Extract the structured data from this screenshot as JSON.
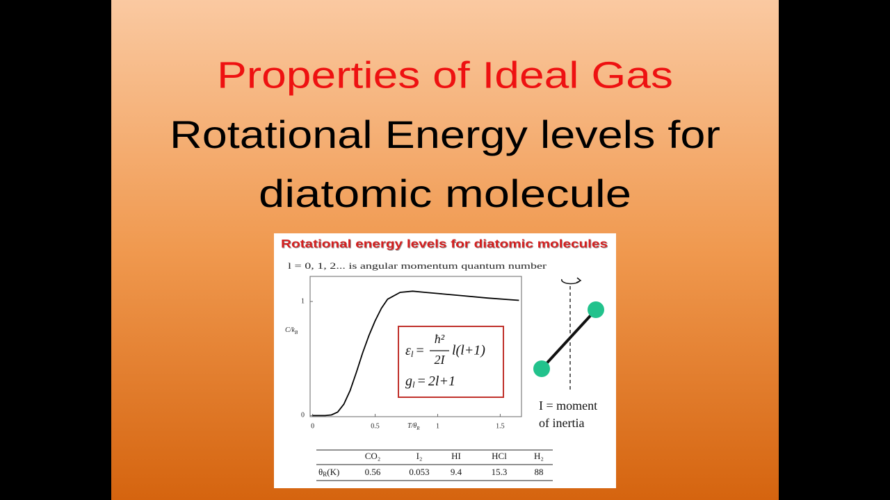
{
  "slide": {
    "title": "Properties of Ideal Gas",
    "subtitle_lines": [
      "Rotational Energy levels for",
      "diatomic molecule"
    ]
  },
  "figure": {
    "title": "Rotational energy levels for diatomic molecules",
    "caption": "l = 0, 1, 2... is angular momentum quantum number",
    "chart_data": {
      "type": "line",
      "x_label": {
        "main": "T/θ",
        "sub": "R"
      },
      "y_label": {
        "main": "C/k",
        "sub": "B"
      },
      "xlim": [
        -0.02,
        1.67
      ],
      "ylim": [
        -0.01,
        1.22
      ],
      "xticks": [
        0,
        0.5,
        1,
        1.5
      ],
      "yticks": [
        0,
        1
      ],
      "color": "#000000",
      "x": [
        0,
        0.1,
        0.15,
        0.2,
        0.25,
        0.3,
        0.35,
        0.4,
        0.45,
        0.5,
        0.55,
        0.6,
        0.7,
        0.8,
        0.9,
        1.0,
        1.2,
        1.4,
        1.65
      ],
      "values": [
        0,
        0,
        0.005,
        0.03,
        0.1,
        0.22,
        0.38,
        0.55,
        0.7,
        0.83,
        0.94,
        1.02,
        1.08,
        1.09,
        1.08,
        1.07,
        1.05,
        1.03,
        1.01
      ]
    },
    "formula": {
      "energy": {
        "symbol": "ε",
        "sub": "l",
        "eq": "=",
        "num": "ħ²",
        "den": "2I",
        "rhs": "l(l+1)"
      },
      "degeneracy": {
        "symbol": "g",
        "sub": "l",
        "eq": "=",
        "rhs": "2l+1"
      }
    },
    "inertia_label": [
      "I = moment",
      "of inertia"
    ],
    "table": {
      "header": [
        "CO₂",
        "I₂",
        "HI",
        "HCl",
        "H₂"
      ],
      "row_label": {
        "symbol": "θ",
        "sub": "R",
        "unit": "(K)"
      },
      "values": [
        "0.56",
        "0.053",
        "9.4",
        "15.3",
        "88"
      ]
    }
  }
}
